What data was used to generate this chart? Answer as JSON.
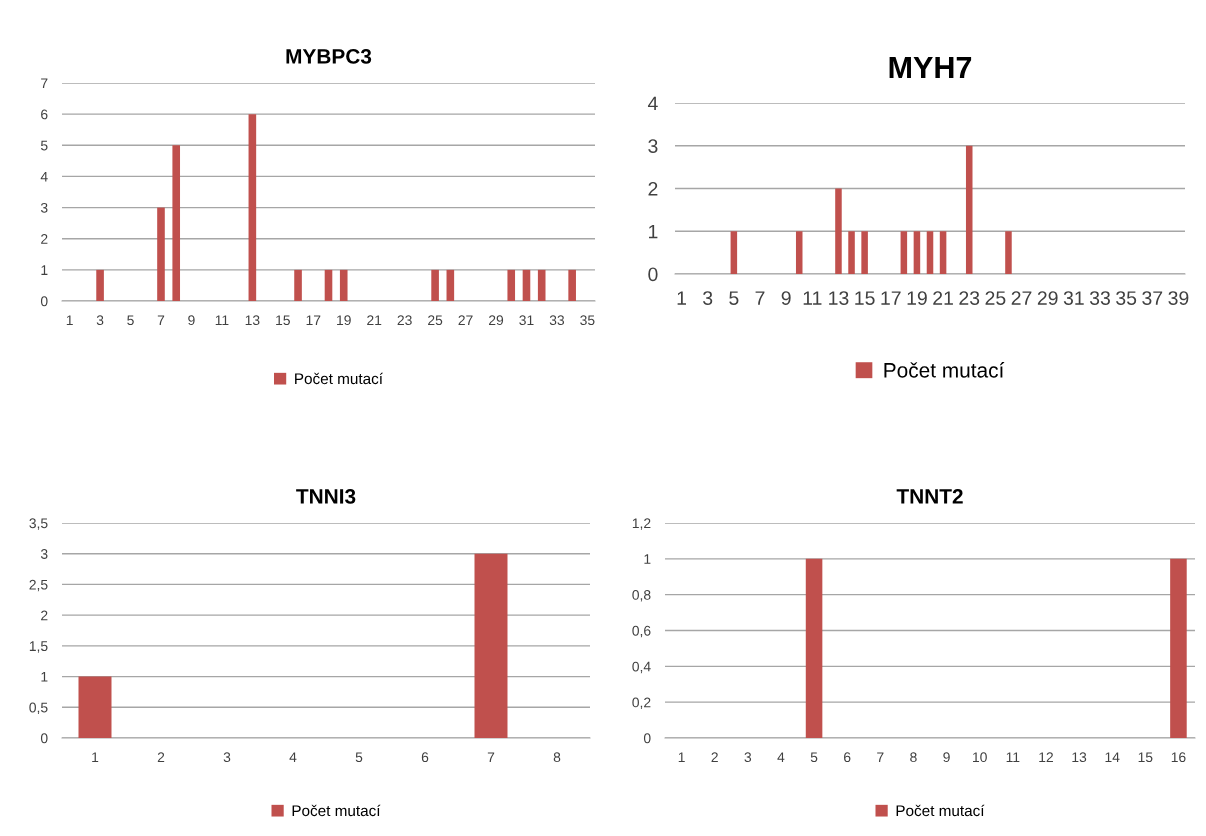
{
  "chart_data": [
    {
      "type": "bar",
      "title": "MYBPC3",
      "categories": [
        "1",
        null,
        "3",
        null,
        "5",
        null,
        "7",
        null,
        "9",
        null,
        "11",
        null,
        "13",
        null,
        "15",
        null,
        "17",
        null,
        "19",
        null,
        "21",
        null,
        "23",
        null,
        "25",
        null,
        "27",
        null,
        "29",
        null,
        "31",
        null,
        "33",
        null,
        "35"
      ],
      "series": [
        {
          "name": "Počet mutací",
          "color": "#c0504d",
          "values": [
            0,
            0,
            1,
            0,
            0,
            0,
            3,
            5,
            0,
            0,
            0,
            0,
            6,
            0,
            0,
            1,
            0,
            1,
            1,
            0,
            0,
            0,
            0,
            0,
            1,
            1,
            0,
            0,
            0,
            1,
            1,
            1,
            0,
            1,
            0
          ]
        }
      ],
      "ylim": [
        0,
        7
      ],
      "yticks": [
        0,
        1,
        2,
        3,
        4,
        5,
        6,
        7
      ],
      "grid": "y",
      "legend": "bottom"
    },
    {
      "type": "bar",
      "title": "MYH7",
      "categories": [
        "1",
        null,
        "3",
        null,
        "5",
        null,
        "7",
        null,
        "9",
        null,
        "11",
        null,
        "13",
        null,
        "15",
        null,
        "17",
        null,
        "19",
        null,
        "21",
        null,
        "23",
        null,
        "25",
        null,
        "27",
        null,
        "29",
        null,
        "31",
        null,
        "33",
        null,
        "35",
        null,
        "37",
        null,
        "39"
      ],
      "series": [
        {
          "name": "Počet mutací",
          "color": "#c0504d",
          "values": [
            0,
            0,
            0,
            0,
            1,
            0,
            0,
            0,
            0,
            1,
            0,
            0,
            2,
            1,
            1,
            0,
            0,
            1,
            1,
            1,
            1,
            0,
            3,
            0,
            0,
            1,
            0,
            0,
            0,
            0,
            0,
            0,
            0,
            0,
            0,
            0,
            0,
            0,
            0
          ]
        }
      ],
      "ylim": [
        0,
        4
      ],
      "yticks": [
        0,
        1,
        2,
        3,
        4
      ],
      "grid": "y",
      "legend": "bottom"
    },
    {
      "type": "bar",
      "title": "TNNI3",
      "categories": [
        "1",
        "2",
        "3",
        "4",
        "5",
        "6",
        "7",
        "8"
      ],
      "series": [
        {
          "name": "Počet mutací",
          "color": "#c0504d",
          "values": [
            1,
            0,
            0,
            0,
            0,
            0,
            3,
            0
          ]
        }
      ],
      "ylim": [
        0,
        3.5
      ],
      "yticks": [
        0,
        {
          "value": 0.5,
          "label": "0,5"
        },
        1,
        {
          "value": 1.5,
          "label": "1,5"
        },
        2,
        {
          "value": 2.5,
          "label": "2,5"
        },
        3,
        {
          "value": 3.5,
          "label": "3,5"
        }
      ],
      "grid": "y",
      "legend": "bottom"
    },
    {
      "type": "bar",
      "title": "TNNT2",
      "categories": [
        "1",
        "2",
        "3",
        "4",
        "5",
        "6",
        "7",
        "8",
        "9",
        "10",
        "11",
        "12",
        "13",
        "14",
        "15",
        "16"
      ],
      "series": [
        {
          "name": "Počet mutací",
          "color": "#c0504d",
          "values": [
            0,
            0,
            0,
            0,
            1,
            0,
            0,
            0,
            0,
            0,
            0,
            0,
            0,
            0,
            0,
            1
          ]
        }
      ],
      "ylim": [
        0,
        1.2
      ],
      "yticks": [
        0,
        {
          "value": 0.2,
          "label": "0,2"
        },
        {
          "value": 0.4,
          "label": "0,4"
        },
        {
          "value": 0.6,
          "label": "0,6"
        },
        {
          "value": 0.8,
          "label": "0,8"
        },
        1,
        {
          "value": 1.2,
          "label": "1,2"
        }
      ],
      "grid": "y",
      "legend": "bottom"
    }
  ]
}
